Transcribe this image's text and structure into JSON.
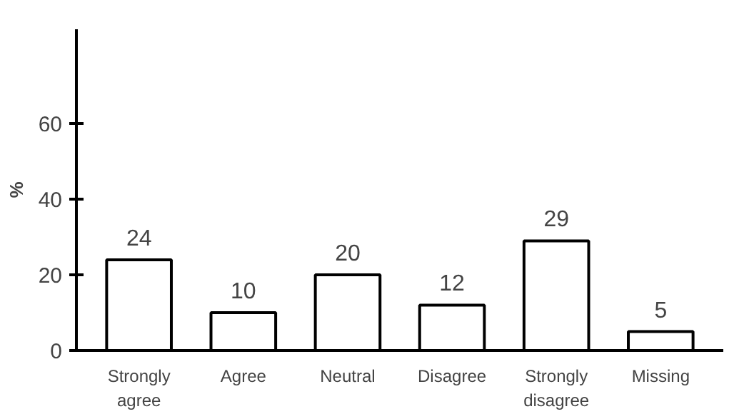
{
  "chart_data": {
    "type": "bar",
    "ylabel": "%",
    "categories": [
      "Strongly agree",
      "Agree",
      "Neutral",
      "Disagree",
      "Strongly disagree",
      "Missing"
    ],
    "values": [
      24,
      10,
      20,
      12,
      29,
      5
    ],
    "color": "#ffffff",
    "ylim": [
      0,
      85
    ],
    "yticks": [
      0,
      20,
      40,
      60
    ],
    "data_labels": true
  }
}
